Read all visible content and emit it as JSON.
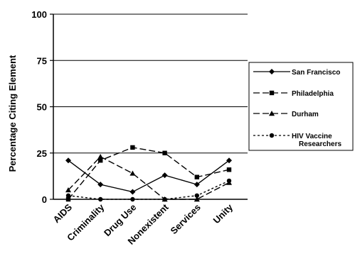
{
  "chart_data": {
    "type": "line",
    "title": "",
    "xlabel": "",
    "ylabel": "Percentage Citing Element",
    "categories": [
      "AIDS",
      "Criminality",
      "Drug Use",
      "Nonexistent",
      "Services",
      "Unity"
    ],
    "ylim": [
      0,
      100
    ],
    "yticks": [
      0,
      25,
      50,
      75,
      100
    ],
    "grid": true,
    "legend": "right",
    "series": [
      {
        "name": "San Francisco",
        "values": [
          21,
          8,
          4,
          13,
          8,
          21
        ],
        "marker": "diamond",
        "dash": "solid"
      },
      {
        "name": "Philadelphia",
        "values": [
          0,
          21,
          28,
          25,
          12,
          16
        ],
        "marker": "square",
        "dash": "long-dash"
      },
      {
        "name": "Durham",
        "values": [
          5,
          23,
          14,
          0,
          0,
          9
        ],
        "marker": "triangle",
        "dash": "long-dash"
      },
      {
        "name": "HIV Vaccine Researchers",
        "values": [
          2,
          0,
          0,
          0,
          2,
          10
        ],
        "marker": "circle",
        "dash": "dotted"
      }
    ]
  }
}
